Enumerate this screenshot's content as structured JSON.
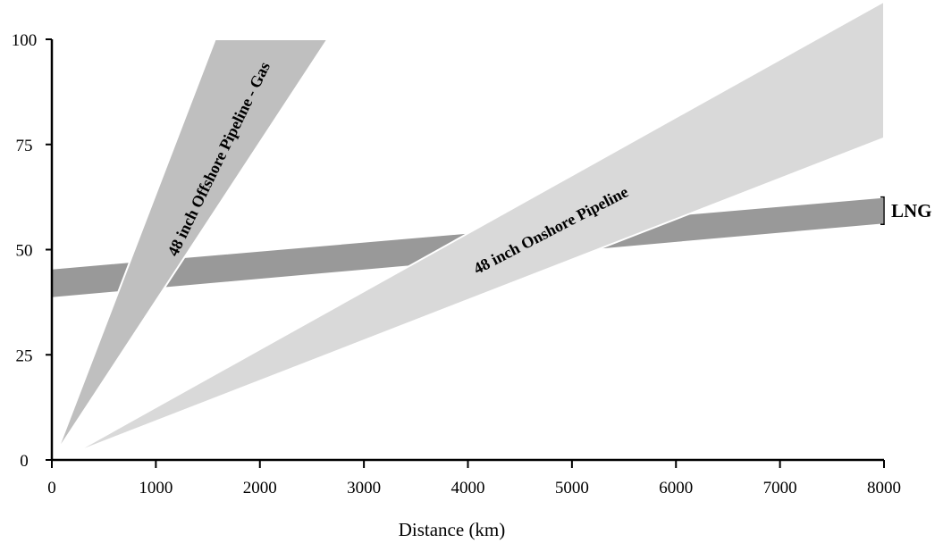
{
  "chart_data": {
    "type": "area",
    "xlabel": "Distance (km)",
    "ylabel": "",
    "xlim": [
      0,
      8000
    ],
    "ylim": [
      0,
      100
    ],
    "xticks": [
      0,
      1000,
      2000,
      3000,
      4000,
      5000,
      6000,
      7000,
      8000
    ],
    "yticks": [
      0,
      25,
      50,
      75,
      100
    ],
    "grid": false,
    "series": [
      {
        "name": "LNG",
        "color": "#999999",
        "upper": [
          [
            0,
            45.5
          ],
          [
            8000,
            62.5
          ]
        ],
        "lower": [
          [
            0,
            38.5
          ],
          [
            8000,
            56
          ]
        ],
        "label": "LNG"
      },
      {
        "name": "48 inch Onshore Pipeline",
        "color": "#d9d9d9",
        "upper": [
          [
            200,
            1.5
          ],
          [
            8000,
            109
          ]
        ],
        "lower": [
          [
            200,
            1.5
          ],
          [
            8000,
            76.5
          ]
        ],
        "label": "48 inch Onshore Pipeline"
      },
      {
        "name": "48 inch Offshore Pipeline - Gas",
        "color": "#bfbfbf",
        "upper": [
          [
            50,
            2
          ],
          [
            1570,
            100
          ]
        ],
        "lower": [
          [
            50,
            2
          ],
          [
            2650,
            100
          ]
        ],
        "label": "48 inch Offshore Pipeline - Gas"
      }
    ]
  }
}
